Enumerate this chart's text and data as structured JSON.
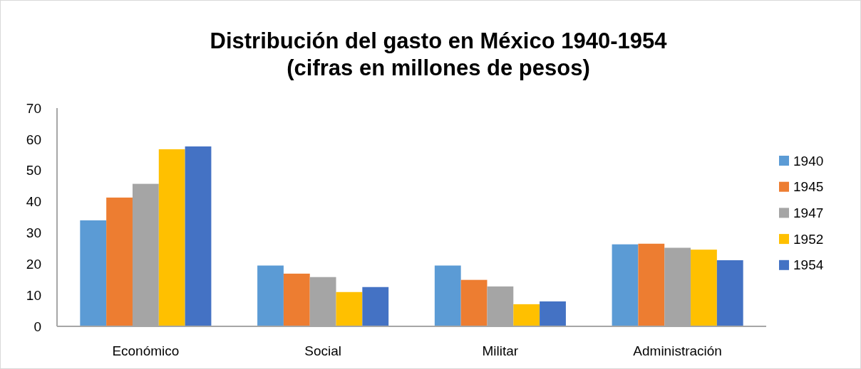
{
  "chart_data": {
    "type": "bar",
    "title": "Distribución del gasto en México 1940-1954\n(cifras en millones de pesos)",
    "categories": [
      "Económico",
      "Social",
      "Militar",
      "Administración"
    ],
    "series": [
      {
        "name": "1940",
        "color": "#5b9bd5",
        "values": [
          34.0,
          19.5,
          19.5,
          26.3
        ]
      },
      {
        "name": "1945",
        "color": "#ed7d31",
        "values": [
          41.3,
          16.9,
          14.9,
          26.5
        ]
      },
      {
        "name": "1947",
        "color": "#a5a5a5",
        "values": [
          45.7,
          15.8,
          12.8,
          25.2
        ]
      },
      {
        "name": "1952",
        "color": "#ffc000",
        "values": [
          56.8,
          11.0,
          7.1,
          24.6
        ]
      },
      {
        "name": "1954",
        "color": "#4472c4",
        "values": [
          57.7,
          12.6,
          8.0,
          21.2
        ]
      }
    ],
    "ylim": [
      0,
      70
    ],
    "yticks": [
      0,
      10,
      20,
      30,
      40,
      50,
      60,
      70
    ],
    "grid": false,
    "legend": "right"
  }
}
